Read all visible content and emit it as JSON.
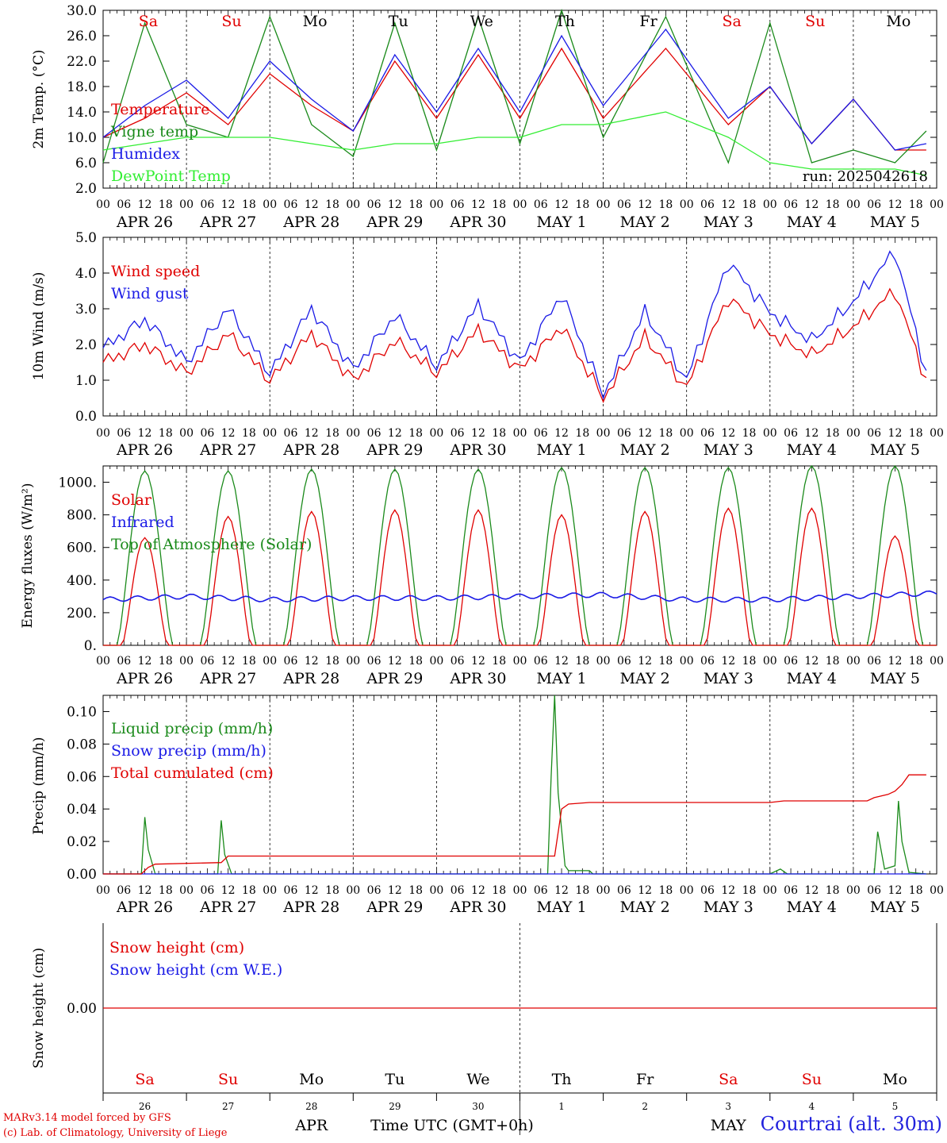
{
  "run_label": "run: 2025042618",
  "x_tick_labels": [
    "00",
    "06",
    "12",
    "18"
  ],
  "date_labels": [
    "APR 26",
    "APR 27",
    "APR 28",
    "APR 29",
    "APR 30",
    "MAY  1",
    "MAY  2",
    "MAY  3",
    "MAY  4",
    "MAY  5"
  ],
  "day_names": [
    "Sa",
    "Su",
    "Mo",
    "Tu",
    "We",
    "Th",
    "Fr",
    "Sa",
    "Su",
    "Mo"
  ],
  "day_colors": [
    "#e00000",
    "#e00000",
    "#000000",
    "#000000",
    "#000000",
    "#000000",
    "#000000",
    "#e00000",
    "#e00000",
    "#000000"
  ],
  "bottom_day_numbers": [
    "26",
    "27",
    "28",
    "29",
    "30",
    "1",
    "2",
    "3",
    "4",
    "5"
  ],
  "month_labels": {
    "apr": "APR",
    "may": "MAY"
  },
  "xaxis_title": "Time UTC (GMT+0h)",
  "credit_line1": "MARv3.14 model forced by GFS",
  "credit_line2": "(c) Lab. of Climatology, University of Liege",
  "station_label": "Courtrai (alt. 30m)",
  "colors": {
    "red": "#e00000",
    "green": "#1a8a1a",
    "blue": "#1a1ae6",
    "lightgreen": "#33ee33"
  },
  "chart_data": [
    {
      "type": "line",
      "ylabel": "2m Temp. (°C)",
      "ylim": [
        2,
        30
      ],
      "yticks": [
        "2.0",
        "6.0",
        "10.0",
        "14.0",
        "18.0",
        "22.0",
        "26.0",
        "30.0"
      ],
      "x": [
        0,
        12,
        24,
        36,
        48,
        60,
        72,
        84,
        96,
        108,
        120,
        132,
        144,
        162,
        180,
        192,
        204,
        216,
        228,
        237
      ],
      "x_units": "hours since APR 26 00 UTC",
      "series": [
        {
          "name": "Temperature",
          "color": "red",
          "values": [
            10,
            13,
            17,
            12,
            20,
            15,
            11,
            22,
            13,
            23,
            13,
            24,
            13,
            24,
            12,
            18,
            9,
            16,
            8,
            8
          ]
        },
        {
          "name": "Vigne temp",
          "color": "green",
          "values": [
            6,
            28,
            12,
            10,
            29,
            12,
            7,
            28,
            8,
            29,
            9,
            30,
            10,
            29,
            6,
            28,
            6,
            8,
            6,
            11
          ]
        },
        {
          "name": "Humidex",
          "color": "blue",
          "values": [
            10,
            15,
            19,
            13,
            22,
            16,
            11,
            23,
            14,
            24,
            14,
            26,
            15,
            27,
            13,
            18,
            9,
            16,
            8,
            9
          ]
        },
        {
          "name": "DewPoint Temp",
          "color": "lightgreen",
          "values": [
            8,
            9,
            10,
            10,
            10,
            9,
            8,
            9,
            9,
            10,
            10,
            12,
            12,
            14,
            10,
            6,
            5,
            5,
            5,
            4
          ]
        }
      ]
    },
    {
      "type": "line",
      "ylabel": "10m Wind (m/s)",
      "ylim": [
        0,
        5
      ],
      "yticks": [
        "0.0",
        "1.0",
        "2.0",
        "3.0",
        "4.0",
        "5.0"
      ],
      "x": [
        0,
        12,
        24,
        36,
        48,
        60,
        72,
        84,
        96,
        108,
        120,
        132,
        144,
        156,
        168,
        180,
        192,
        204,
        216,
        228,
        237
      ],
      "series": [
        {
          "name": "Wind speed",
          "color": "red",
          "values": [
            1.5,
            2.0,
            1.2,
            2.3,
            1.0,
            2.3,
            1.0,
            2.1,
            1.2,
            2.4,
            1.3,
            2.5,
            0.5,
            2.2,
            0.8,
            3.3,
            2.3,
            1.7,
            2.5,
            3.5,
            1.0
          ]
        },
        {
          "name": "Wind gust",
          "color": "blue",
          "values": [
            1.9,
            2.7,
            1.5,
            3.0,
            1.2,
            3.0,
            1.3,
            2.8,
            1.4,
            3.1,
            1.5,
            3.4,
            0.6,
            2.9,
            1.0,
            4.3,
            2.9,
            2.1,
            3.2,
            4.6,
            1.2
          ]
        }
      ]
    },
    {
      "type": "line",
      "ylabel": "Energy fluxes (W/m²)",
      "ylim": [
        0,
        1100
      ],
      "yticks": [
        "0.",
        "200.",
        "400.",
        "600.",
        "800.",
        "1000."
      ],
      "series": [
        {
          "name": "Solar",
          "color": "red",
          "daily_peaks": [
            660,
            790,
            820,
            830,
            830,
            800,
            820,
            840,
            840,
            670
          ]
        },
        {
          "name": "Infrared",
          "color": "blue",
          "values": [
            280,
            300,
            280,
            290,
            290,
            300,
            310,
            280,
            280,
            300,
            320
          ]
        },
        {
          "name": "Top of Atmosphere (Solar)",
          "color": "green",
          "daily_peaks": [
            1070,
            1070,
            1080,
            1080,
            1080,
            1090,
            1090,
            1090,
            1100,
            1100
          ]
        }
      ]
    },
    {
      "type": "line",
      "ylabel": "Precip (mm/h)",
      "ylim": [
        0,
        0.11
      ],
      "yticks": [
        "0.00",
        "0.02",
        "0.04",
        "0.06",
        "0.08",
        "0.10"
      ],
      "series": [
        {
          "name": "Liquid precip (mm/h)",
          "color": "green",
          "x": [
            0,
            11,
            12,
            13,
            15,
            33,
            34,
            35,
            37,
            128,
            129,
            130,
            131,
            133,
            134,
            140,
            141,
            144,
            192,
            195,
            197,
            222,
            223,
            225,
            228,
            229,
            230,
            232,
            237
          ],
          "values": [
            0,
            0,
            0.035,
            0.015,
            0,
            0,
            0.033,
            0.012,
            0,
            0,
            0.06,
            0.11,
            0.05,
            0.005,
            0.002,
            0.002,
            0,
            0,
            0,
            0.003,
            0,
            0,
            0.026,
            0.003,
            0.005,
            0.045,
            0.02,
            0.001,
            0
          ]
        },
        {
          "name": "Snow precip (mm/h)",
          "color": "blue",
          "x": [
            0,
            237
          ],
          "values": [
            0,
            0
          ]
        },
        {
          "name": "Total cumulated (cm)",
          "color": "red",
          "x": [
            0,
            11,
            13,
            15,
            34,
            36,
            38,
            130,
            132,
            134,
            140,
            192,
            196,
            220,
            222,
            226,
            228,
            230,
            232,
            237
          ],
          "values": [
            0,
            0,
            0.004,
            0.006,
            0.007,
            0.011,
            0.011,
            0.011,
            0.04,
            0.043,
            0.044,
            0.044,
            0.045,
            0.045,
            0.047,
            0.049,
            0.051,
            0.055,
            0.061,
            0.061
          ]
        }
      ]
    },
    {
      "type": "line",
      "ylabel": "Snow height (cm)",
      "ytick_label": "0.00",
      "series": [
        {
          "name": "Snow height (cm)",
          "color": "red",
          "values": [
            0,
            0
          ]
        },
        {
          "name": "Snow height (cm W.E.)",
          "color": "blue",
          "values": [
            0,
            0
          ]
        }
      ]
    }
  ]
}
